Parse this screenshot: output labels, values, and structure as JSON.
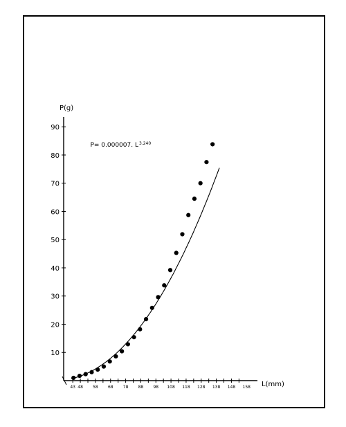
{
  "chart_data": {
    "type": "scatter",
    "title": "",
    "xlabel": "L(mm)",
    "ylabel": "P(g)",
    "xlim": [
      42,
      162
    ],
    "ylim": [
      0,
      93
    ],
    "y_ticks": [
      10,
      20,
      30,
      40,
      50,
      60,
      70,
      80,
      90
    ],
    "y_tick_labels": [
      "10",
      "20",
      "30",
      "40",
      "50",
      "60",
      "70",
      "80",
      "90"
    ],
    "x_ticks": [
      43,
      48,
      53,
      58,
      63,
      68,
      73,
      78,
      83,
      88,
      93,
      98,
      103,
      108,
      113,
      118,
      123,
      128,
      133,
      138,
      143,
      148,
      153
    ],
    "x_tick_labels": [
      {
        "x": 43,
        "label": "43"
      },
      {
        "x": 48,
        "label": "48"
      },
      {
        "x": 58,
        "label": "58"
      },
      {
        "x": 68,
        "label": "68"
      },
      {
        "x": 78,
        "label": "78"
      },
      {
        "x": 88,
        "label": "88"
      },
      {
        "x": 98,
        "label": "98"
      },
      {
        "x": 108,
        "label": "108"
      },
      {
        "x": 118,
        "label": "118"
      },
      {
        "x": 128,
        "label": "128"
      },
      {
        "x": 138,
        "label": "138"
      },
      {
        "x": 148,
        "label": "148"
      },
      {
        "x": 158,
        "label": "158"
      }
    ],
    "annotation": {
      "text": "P= 0.000007. L",
      "exponent": "3.240",
      "x": 50,
      "y": 82
    },
    "fit": {
      "coefficient": 7e-06,
      "exponent": 3.24
    },
    "series": [
      {
        "values": [
          {
            "x": 43.5,
            "y": 1.0
          },
          {
            "x": 47.5,
            "y": 1.7
          },
          {
            "x": 51.5,
            "y": 2.3
          },
          {
            "x": 55.5,
            "y": 3.0
          },
          {
            "x": 59.5,
            "y": 3.9
          },
          {
            "x": 63.5,
            "y": 5.0
          },
          {
            "x": 67.5,
            "y": 6.8
          },
          {
            "x": 71.5,
            "y": 8.6
          },
          {
            "x": 75.5,
            "y": 10.4
          },
          {
            "x": 79.5,
            "y": 12.9
          },
          {
            "x": 83.5,
            "y": 15.4
          },
          {
            "x": 87.5,
            "y": 18.2
          },
          {
            "x": 91.5,
            "y": 21.8
          },
          {
            "x": 95.5,
            "y": 25.8
          },
          {
            "x": 99.5,
            "y": 29.6
          },
          {
            "x": 103.5,
            "y": 33.8
          },
          {
            "x": 107.5,
            "y": 39.2
          },
          {
            "x": 111.5,
            "y": 45.3
          },
          {
            "x": 115.5,
            "y": 51.9
          },
          {
            "x": 119.5,
            "y": 58.7
          },
          {
            "x": 123.5,
            "y": 64.5
          },
          {
            "x": 127.5,
            "y": 70.0
          },
          {
            "x": 131.5,
            "y": 77.5
          },
          {
            "x": 135.5,
            "y": 83.8
          }
        ]
      }
    ]
  }
}
